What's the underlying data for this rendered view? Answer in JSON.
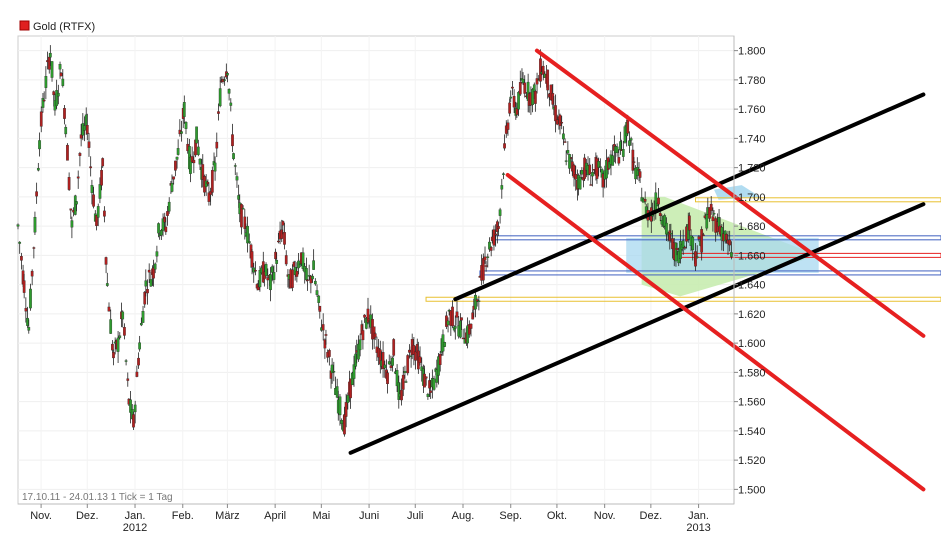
{
  "chart_data": {
    "type": "candlestick",
    "title": "Gold (RTFX)",
    "legend": {
      "label": "Gold (RTFX)",
      "color": "#e02020",
      "placement": "top-left"
    },
    "footer": "17.10.11 - 24.01.13   1 Tick = 1 Tag",
    "y_axis": {
      "position": "right",
      "min": 1.49,
      "max": 1.82,
      "ticks": [
        "1.800",
        "1.780",
        "1.760",
        "1.740",
        "1.720",
        "1.700",
        "1.680",
        "1.660",
        "1.640",
        "1.620",
        "1.600",
        "1.580",
        "1.560",
        "1.540",
        "1.520",
        "1.500"
      ],
      "tick_values": [
        1800,
        1780,
        1760,
        1740,
        1720,
        1700,
        1680,
        1660,
        1640,
        1620,
        1600,
        1580,
        1560,
        1540,
        1520,
        1500
      ]
    },
    "x_axis": {
      "months": [
        {
          "label": "Nov.",
          "day": 15
        },
        {
          "label": "Dez.",
          "day": 45
        },
        {
          "label": "Jan.",
          "day": 76,
          "year": "2012"
        },
        {
          "label": "Feb.",
          "day": 107
        },
        {
          "label": "März",
          "day": 136
        },
        {
          "label": "April",
          "day": 167
        },
        {
          "label": "Mai",
          "day": 197
        },
        {
          "label": "Juni",
          "day": 228
        },
        {
          "label": "Juli",
          "day": 258
        },
        {
          "label": "Aug.",
          "day": 289
        },
        {
          "label": "Sep.",
          "day": 320
        },
        {
          "label": "Okt.",
          "day": 350
        },
        {
          "label": "Nov.",
          "day": 381
        },
        {
          "label": "Dez.",
          "day": 411
        },
        {
          "label": "Jan.",
          "day": 442,
          "year": "2013"
        }
      ],
      "start": "17.10.11",
      "end": "24.01.13",
      "day_range": [
        0,
        465
      ]
    },
    "series_points": [
      [
        0,
        1680
      ],
      [
        4,
        1640
      ],
      [
        7,
        1610
      ],
      [
        11,
        1680
      ],
      [
        14,
        1740
      ],
      [
        17,
        1770
      ],
      [
        21,
        1800
      ],
      [
        24,
        1760
      ],
      [
        28,
        1790
      ],
      [
        31,
        1750
      ],
      [
        35,
        1680
      ],
      [
        38,
        1700
      ],
      [
        41,
        1740
      ],
      [
        45,
        1750
      ],
      [
        48,
        1710
      ],
      [
        51,
        1680
      ],
      [
        55,
        1720
      ],
      [
        58,
        1640
      ],
      [
        62,
        1590
      ],
      [
        65,
        1600
      ],
      [
        68,
        1620
      ],
      [
        72,
        1560
      ],
      [
        75,
        1545
      ],
      [
        79,
        1600
      ],
      [
        83,
        1640
      ],
      [
        88,
        1650
      ],
      [
        92,
        1680
      ],
      [
        96,
        1680
      ],
      [
        100,
        1710
      ],
      [
        104,
        1730
      ],
      [
        108,
        1760
      ],
      [
        112,
        1720
      ],
      [
        116,
        1740
      ],
      [
        120,
        1715
      ],
      [
        124,
        1700
      ],
      [
        128,
        1720
      ],
      [
        132,
        1780
      ],
      [
        136,
        1790
      ],
      [
        140,
        1730
      ],
      [
        144,
        1690
      ],
      [
        148,
        1680
      ],
      [
        152,
        1660
      ],
      [
        156,
        1640
      ],
      [
        160,
        1650
      ],
      [
        164,
        1640
      ],
      [
        168,
        1660
      ],
      [
        172,
        1680
      ],
      [
        176,
        1640
      ],
      [
        180,
        1650
      ],
      [
        184,
        1660
      ],
      [
        188,
        1640
      ],
      [
        192,
        1650
      ],
      [
        196,
        1620
      ],
      [
        200,
        1600
      ],
      [
        204,
        1580
      ],
      [
        208,
        1560
      ],
      [
        212,
        1545
      ],
      [
        216,
        1570
      ],
      [
        220,
        1590
      ],
      [
        224,
        1610
      ],
      [
        228,
        1620
      ],
      [
        232,
        1600
      ],
      [
        236,
        1590
      ],
      [
        240,
        1580
      ],
      [
        244,
        1595
      ],
      [
        248,
        1560
      ],
      [
        252,
        1580
      ],
      [
        256,
        1600
      ],
      [
        260,
        1590
      ],
      [
        264,
        1575
      ],
      [
        268,
        1565
      ],
      [
        272,
        1580
      ],
      [
        276,
        1600
      ],
      [
        280,
        1620
      ],
      [
        284,
        1615
      ],
      [
        288,
        1610
      ],
      [
        292,
        1605
      ],
      [
        296,
        1620
      ],
      [
        300,
        1640
      ],
      [
        304,
        1660
      ],
      [
        308,
        1670
      ],
      [
        312,
        1680
      ],
      [
        316,
        1730
      ],
      [
        320,
        1770
      ],
      [
        324,
        1760
      ],
      [
        328,
        1780
      ],
      [
        332,
        1770
      ],
      [
        336,
        1770
      ],
      [
        340,
        1790
      ],
      [
        344,
        1780
      ],
      [
        348,
        1760
      ],
      [
        352,
        1750
      ],
      [
        356,
        1730
      ],
      [
        360,
        1720
      ],
      [
        364,
        1710
      ],
      [
        368,
        1720
      ],
      [
        372,
        1715
      ],
      [
        376,
        1720
      ],
      [
        380,
        1710
      ],
      [
        384,
        1725
      ],
      [
        388,
        1730
      ],
      [
        392,
        1730
      ],
      [
        396,
        1750
      ],
      [
        400,
        1720
      ],
      [
        404,
        1710
      ],
      [
        408,
        1690
      ],
      [
        412,
        1690
      ],
      [
        416,
        1700
      ],
      [
        420,
        1680
      ],
      [
        424,
        1670
      ],
      [
        428,
        1660
      ],
      [
        432,
        1670
      ],
      [
        436,
        1680
      ],
      [
        440,
        1660
      ],
      [
        444,
        1670
      ],
      [
        448,
        1690
      ],
      [
        452,
        1685
      ],
      [
        456,
        1680
      ],
      [
        460,
        1670
      ],
      [
        464,
        1660
      ]
    ],
    "trend_lines": [
      {
        "color": "#000000",
        "from": [
          216,
          1525
        ],
        "to": [
          588,
          1695
        ]
      },
      {
        "color": "#000000",
        "from": [
          284,
          1630
        ],
        "to": [
          588,
          1770
        ]
      },
      {
        "color": "#e62020",
        "from": [
          337,
          1800
        ],
        "to": [
          588,
          1605
        ]
      },
      {
        "color": "#e62020",
        "from": [
          318,
          1715
        ],
        "to": [
          588,
          1500
        ]
      }
    ],
    "horizontal_levels": [
      {
        "color": "#e8c030",
        "value": 1698
      },
      {
        "color": "#e8c030",
        "value": 1630
      },
      {
        "color": "#4060c0",
        "value": 1672
      },
      {
        "color": "#4060c0",
        "value": 1648
      },
      {
        "color": "#e62020",
        "value": 1660
      }
    ],
    "zones": [
      {
        "color": "#a8d8f0",
        "from_day": 420,
        "to_day": 465,
        "top": 1705,
        "bottom": 1650
      },
      {
        "color": "#c8ecb0",
        "from_day": 410,
        "to_day": 510,
        "top": 1700,
        "bottom": 1630
      }
    ],
    "grid": true
  }
}
